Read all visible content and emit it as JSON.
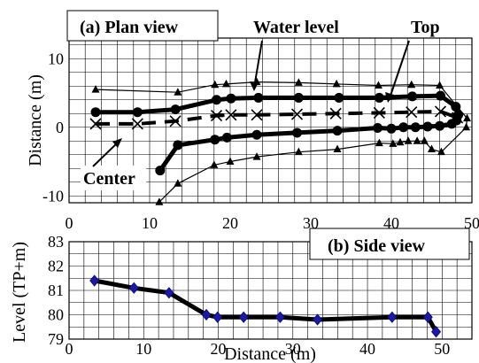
{
  "chart_data": [
    {
      "type": "line",
      "title": "(a) Plan view",
      "xlabel": "",
      "ylabel": "Distance (m)",
      "xlim": [
        0,
        50
      ],
      "ylim": [
        -11,
        13
      ],
      "x_ticks": [
        "0",
        "10",
        "20",
        "30",
        "40",
        "50"
      ],
      "y_ticks": [
        "10",
        "0",
        "-10"
      ],
      "grid": true,
      "annotations": [
        "Water level",
        "Top",
        "Center"
      ],
      "series": [
        {
          "marker": "circle",
          "line": "thick",
          "x": [
            3.3,
            8.5,
            13.2,
            18.3,
            20.1,
            23.5,
            28.5,
            33.5,
            38.5,
            42.6,
            46.1,
            48.0,
            48.3
          ],
          "y": [
            2.2,
            2.2,
            2.6,
            4.0,
            4.2,
            4.3,
            4.3,
            4.3,
            4.3,
            4.5,
            4.6,
            3.0,
            1.8
          ]
        },
        {
          "marker": "circle",
          "line": "thick",
          "x": [
            11.3,
            13.5,
            18.1,
            19.6,
            23.3,
            28.3,
            33.3,
            38.3,
            40.0,
            41.5,
            43.0,
            44.5,
            46.0,
            47.5,
            48.1
          ],
          "y": [
            -6.3,
            -2.6,
            -1.8,
            -1.5,
            -1.1,
            -0.8,
            -0.5,
            -0.1,
            -0.2,
            0.0,
            0.0,
            0.1,
            0.2,
            0.5,
            1.0
          ]
        },
        {
          "marker": "triangle",
          "line": "thin",
          "x": [
            3.3,
            13.5,
            18.1,
            19.5,
            23.3,
            28.5,
            33.2,
            38.4,
            42.5,
            46.0,
            49.4,
            49.3,
            46.2,
            45.0,
            44.1,
            43.2,
            42.1,
            41.1,
            40.2,
            38.5,
            33.3,
            28.5,
            23.3,
            20.0,
            18.0,
            13.5,
            11.2
          ],
          "y": [
            5.5,
            5.1,
            6.2,
            6.3,
            6.6,
            6.5,
            6.3,
            6.1,
            6.2,
            6.1,
            1.3,
            0.0,
            -3.6,
            -3.2,
            -2.0,
            -2.0,
            -2.0,
            -2.2,
            -2.4,
            -2.3,
            -3.2,
            -3.6,
            -4.3,
            -5.0,
            -5.5,
            -8.2,
            -10.9
          ]
        },
        {
          "marker": "x",
          "line": "dashed",
          "x": [
            3.3,
            8.5,
            13.2,
            18.3,
            20.1,
            23.3,
            28.3,
            33.1,
            38.5,
            42.5,
            46.1,
            48.2
          ],
          "y": [
            0.5,
            0.5,
            0.9,
            1.7,
            1.8,
            1.8,
            1.9,
            2.0,
            2.1,
            2.2,
            2.3,
            1.4
          ]
        }
      ]
    },
    {
      "type": "line",
      "title": "(b) Side view",
      "xlabel": "Distance (m)",
      "ylabel": "Level (TP+m)",
      "xlim": [
        0,
        54
      ],
      "ylim": [
        79,
        83
      ],
      "x_ticks": [
        "0",
        "10",
        "20",
        "30",
        "40",
        "50"
      ],
      "y_ticks": [
        "83",
        "82",
        "81",
        "80",
        "79"
      ],
      "grid": true,
      "series": [
        {
          "marker": "diamond",
          "line": "thick",
          "x": [
            3.4,
            8.7,
            13.4,
            18.4,
            19.9,
            23.4,
            28.3,
            33.3,
            43.3,
            48.1,
            49.2
          ],
          "y": [
            81.4,
            81.1,
            80.9,
            80.0,
            79.9,
            79.9,
            79.9,
            79.8,
            79.9,
            79.9,
            79.3
          ]
        }
      ]
    }
  ]
}
